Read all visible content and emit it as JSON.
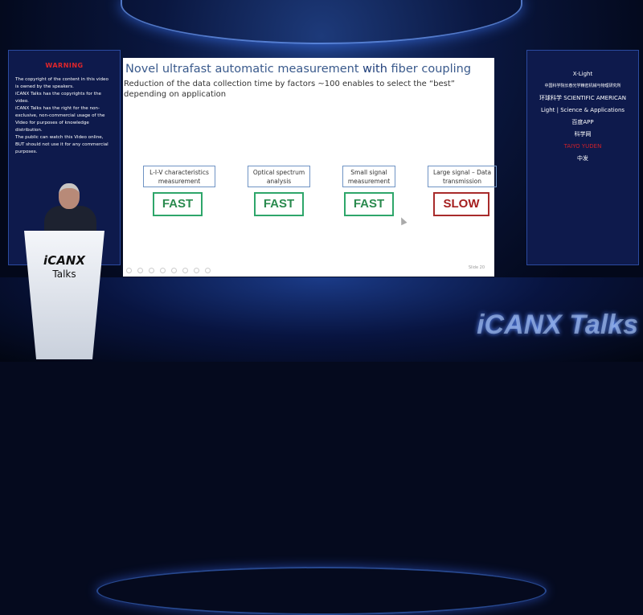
{
  "warning": {
    "title": "WARNING",
    "paragraphs": [
      "The copyright of the content in this video is owned by the speakers.",
      "iCANX Talks has the copyrights for the video.",
      "iCANX Talks has the right for the non-exclusive, non-commercial usage of the Video for purposes of knowledge distribution.",
      "The public can watch this Video online, BUT should not use it for any commercial purposes."
    ]
  },
  "logos": [
    "X-Light",
    "中国科学院长春光学精密机械与物理研究所",
    "环球科学 SCIENTIFIC AMERICAN",
    "Light | Science & Applications",
    "百度APP",
    "科学网",
    "TAIYO YUDEN",
    "中发"
  ],
  "slide": {
    "title_pre": "Novel ultrafast automatic measurement ",
    "title_bold": "with",
    "title_post": " fiber coupling",
    "subtitle": "Reduction of the data collection time by factors ~100 enables to select the “best” depending on application",
    "items": [
      {
        "label": "L-I-V characteristics measurement",
        "speed": "FAST"
      },
      {
        "label": "Optical spectrum analysis",
        "speed": "FAST"
      },
      {
        "label": "Small signal measurement",
        "speed": "FAST"
      },
      {
        "label": "Large signal – Data transmission",
        "speed": "SLOW"
      }
    ],
    "slide_number": "Slide 20"
  },
  "podium": {
    "brand": "iCANX",
    "sub": "Talks"
  },
  "watermark": "iCANX Talks",
  "colors": {
    "fast": "#2a8a4e",
    "slow": "#a51f1f",
    "warning": "#e0262b"
  }
}
